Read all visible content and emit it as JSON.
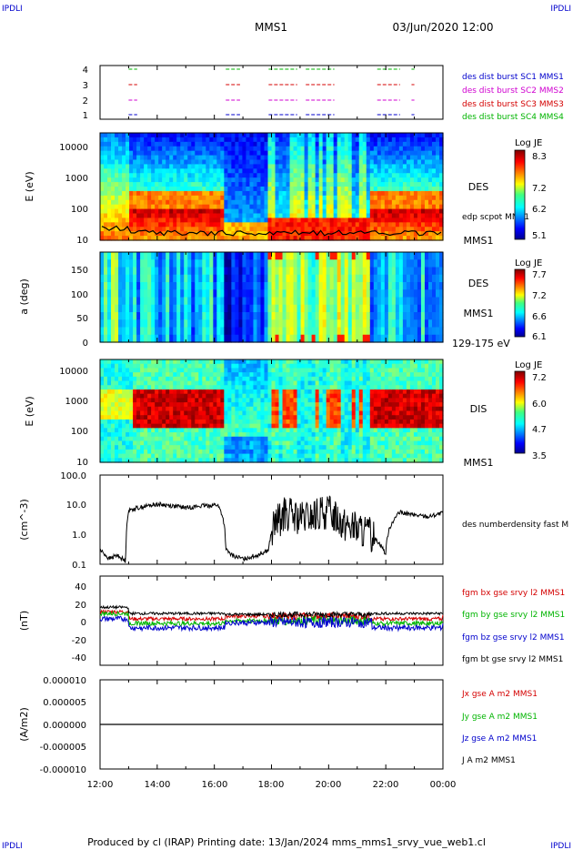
{
  "header": {
    "corner_logo_left": "IPDLI",
    "corner_logo_right": "IPDLI",
    "corner_logo_bl": "IPDLI",
    "corner_logo_br": "IPDLI",
    "title": "MMS1",
    "datetime": "03/Jun/2020 12:00"
  },
  "footer": {
    "text": "Produced by cl (IRAP)   Printing date: 13/Jan/2024   mms_mms1_srvy_vue_web1.cl"
  },
  "colors": {
    "red": "#d40000",
    "green": "#00b400",
    "blue": "#0000cc",
    "magenta": "#d000d0",
    "black": "#000000"
  },
  "chart_data": [
    {
      "type": "scatter",
      "id": "burst",
      "ylim": [
        0.5,
        4.5
      ],
      "yticks": [
        "1",
        "2",
        "3",
        "4"
      ],
      "legend": [
        {
          "text": "des dist burst SC1 MMS1",
          "color": "#0000cc"
        },
        {
          "text": "des dist burst SC2 MMS2",
          "color": "#d000d0"
        },
        {
          "text": "des dist burst SC3 MMS3",
          "color": "#d40000"
        },
        {
          "text": "des dist burst SC4 MMS4",
          "color": "#00b400"
        }
      ],
      "intervals_hours": [
        [
          13.0,
          13.3
        ],
        [
          16.4,
          16.9
        ],
        [
          17.9,
          18.9
        ],
        [
          19.2,
          20.2
        ],
        [
          21.7,
          22.5
        ],
        [
          22.9,
          23.0
        ]
      ]
    },
    {
      "type": "heatmap",
      "id": "des_e",
      "ylabel": "E (eV)",
      "ylog": true,
      "ylim": [
        10,
        30000
      ],
      "yticks": [
        "10",
        "100",
        "1000",
        "10000"
      ],
      "label_right": "DES",
      "label_right2": "MMS1",
      "line_label": "edp scpot MMS1",
      "colorbar": {
        "title": "Log JE",
        "ticks": [
          "8.3",
          "7.2",
          "6.2",
          "5.1"
        ]
      }
    },
    {
      "type": "heatmap",
      "id": "des_pa",
      "ylabel": "a (deg)",
      "ylim": [
        0,
        180
      ],
      "yticks": [
        "0",
        "50",
        "100",
        "150"
      ],
      "label_right": "DES",
      "label_right2": "MMS1",
      "energy_range": "129-175 eV",
      "colorbar": {
        "title": "Log JE",
        "ticks": [
          "7.7",
          "7.2",
          "6.6",
          "6.1"
        ]
      }
    },
    {
      "type": "heatmap",
      "id": "dis_e",
      "ylabel": "E (eV)",
      "ylog": true,
      "ylim": [
        10,
        25000
      ],
      "yticks": [
        "10",
        "100",
        "1000",
        "10000"
      ],
      "label_right": "DIS",
      "label_right2": "MMS1",
      "colorbar": {
        "title": "Log JE",
        "ticks": [
          "7.2",
          "6.0",
          "4.7",
          "3.5"
        ]
      }
    },
    {
      "type": "line",
      "id": "density",
      "ylabel": "(cm^-3)",
      "ylog": true,
      "ylim": [
        0.1,
        100
      ],
      "yticks": [
        "0.1",
        "1.0",
        "10.0",
        "100.0"
      ],
      "series": [
        {
          "name": "des numberdensity fast M",
          "color": "#000000"
        }
      ],
      "profile_hours": [
        12.0,
        12.3,
        12.6,
        12.9,
        13.0,
        13.1,
        14.0,
        15.0,
        15.5,
        16.1,
        16.4,
        16.6,
        17.0,
        17.5,
        17.9,
        18.5,
        19.0,
        19.5,
        20.0,
        20.5,
        21.0,
        21.5,
        22.0,
        22.5,
        23.0,
        23.5,
        24.0
      ],
      "profile_values": [
        0.3,
        0.15,
        0.2,
        0.12,
        6.0,
        7.0,
        10.5,
        8.0,
        9.0,
        10.0,
        0.3,
        0.2,
        0.15,
        0.2,
        0.3,
        5.0,
        3.0,
        4.0,
        6.0,
        2.5,
        1.5,
        0.9,
        0.2,
        5.5,
        4.5,
        4.0,
        5.2
      ]
    },
    {
      "type": "line",
      "id": "bfield",
      "ylabel": "(nT)",
      "ylim": [
        -50,
        50
      ],
      "yticks": [
        "-40",
        "-20",
        "0",
        "20",
        "40"
      ],
      "series": [
        {
          "name": "fgm bx gse srvy l2 MMS1",
          "color": "#d40000"
        },
        {
          "name": "fgm by gse srvy l2 MMS1",
          "color": "#00b400"
        },
        {
          "name": "fgm bz gse srvy l2 MMS1",
          "color": "#0000cc"
        },
        {
          "name": "fgm bt gse srvy l2 MMS1",
          "color": "#000000"
        }
      ]
    },
    {
      "type": "line",
      "id": "current",
      "ylabel": "(A/m2)",
      "ylim": [
        -1e-05,
        1e-05
      ],
      "yticks": [
        "-0.000010",
        "-0.000005",
        "0.000000",
        "0.000005",
        "0.000010"
      ],
      "series": [
        {
          "name": "Jx gse A m2 MMS1",
          "color": "#d40000"
        },
        {
          "name": "Jy gse A m2 MMS1",
          "color": "#00b400"
        },
        {
          "name": "Jz gse A m2 MMS1",
          "color": "#0000cc"
        },
        {
          "name": "J A m2 MMS1",
          "color": "#000000"
        }
      ]
    }
  ],
  "xaxis": {
    "xlim_hours": [
      12,
      24
    ],
    "ticks": [
      "12:00",
      "14:00",
      "16:00",
      "18:00",
      "20:00",
      "22:00",
      "00:00"
    ]
  }
}
